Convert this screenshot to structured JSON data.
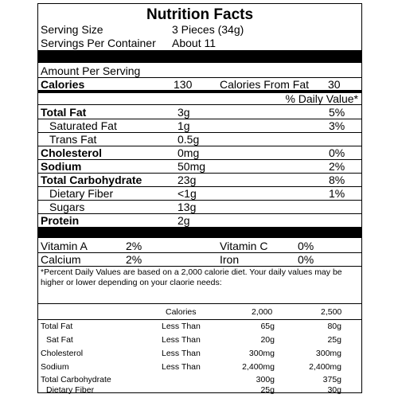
{
  "label": {
    "title": "Nutrition Facts",
    "serving_size_label": "Serving Size",
    "serving_size_value": "3 Pieces (34g)",
    "servings_label": "Servings Per Container",
    "servings_value": "About 11",
    "amount_per_serving": "Amount Per Serving",
    "calories_label": "Calories",
    "calories_value": "130",
    "calories_fat_label": "Calories From Fat",
    "calories_fat_value": "30",
    "dv_header": "% Daily Value*",
    "nutrients": [
      {
        "name": "Total Fat",
        "amount": "3g",
        "dv": "5%"
      },
      {
        "name": "Saturated Fat",
        "amount": "1g",
        "dv": "3%"
      },
      {
        "name": "Trans Fat",
        "amount": "0.5g",
        "dv": ""
      },
      {
        "name": "Cholesterol",
        "amount": "0mg",
        "dv": "0%"
      },
      {
        "name": "Sodium",
        "amount": "50mg",
        "dv": "2%"
      },
      {
        "name": "Total Carbohydrate",
        "amount": "23g",
        "dv": "8%"
      },
      {
        "name": "Dietary Fiber",
        "amount": "<1g",
        "dv": "1%"
      },
      {
        "name": "Sugars",
        "amount": "13g",
        "dv": ""
      },
      {
        "name": "Protein",
        "amount": "2g",
        "dv": ""
      }
    ],
    "vitamins": [
      {
        "name": "Vitamin A",
        "value": "2%"
      },
      {
        "name": "Vitamin C",
        "value": "0%"
      },
      {
        "name": "Calcium",
        "value": "2%"
      },
      {
        "name": "Iron",
        "value": "0%"
      }
    ],
    "footnote_line1": "*Percent Daily Values are based on a 2,000 calorie diet.  Your daily values may be",
    "footnote_line2": "higher or lower depending on your claorie needs:",
    "ref_table": {
      "header": [
        "Calories",
        "2,000",
        "2,500"
      ],
      "rows": [
        {
          "name": "Total Fat",
          "qualifier": "Less Than",
          "v2000": "65g",
          "v2500": "80g"
        },
        {
          "name": "Sat Fat",
          "qualifier": "Less Than",
          "v2000": "20g",
          "v2500": "25g"
        },
        {
          "name": "Cholesterol",
          "qualifier": "Less Than",
          "v2000": "300mg",
          "v2500": "300mg"
        },
        {
          "name": "Sodium",
          "qualifier": "Less Than",
          "v2000": "2,400mg",
          "v2500": "2,400mg"
        },
        {
          "name": "Total Carbohydrate",
          "qualifier": "",
          "v2000": "300g",
          "v2500": "375g"
        },
        {
          "name": "Dietary Fiber",
          "qualifier": "",
          "v2000": "25g",
          "v2500": "30g"
        }
      ]
    }
  }
}
